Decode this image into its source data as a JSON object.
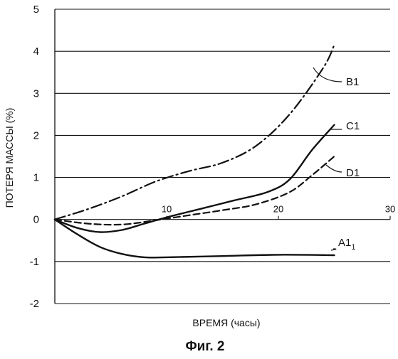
{
  "chart_data": {
    "type": "line",
    "title": "",
    "xlabel": "ВРЕМЯ (часы)",
    "ylabel": "ПОТЕРЯ МАССЫ (%)",
    "xlim": [
      0,
      30
    ],
    "ylim": [
      -2,
      5
    ],
    "x_ticks": [
      "10",
      "20",
      "30"
    ],
    "y_ticks": [
      "-2",
      "-1",
      "0",
      "1",
      "2",
      "3",
      "4",
      "5"
    ],
    "grid": "horizontal",
    "series": [
      {
        "name": "B1",
        "style": "dash-dot",
        "x": [
          0,
          3,
          6,
          9,
          12,
          15,
          18,
          21,
          24,
          25
        ],
        "y": [
          0,
          0.25,
          0.55,
          0.9,
          1.15,
          1.35,
          1.75,
          2.5,
          3.6,
          4.15
        ]
      },
      {
        "name": "C1",
        "style": "solid",
        "x": [
          0,
          2,
          4,
          6,
          8,
          10,
          13,
          16,
          19,
          21,
          23,
          25
        ],
        "y": [
          0,
          -0.2,
          -0.3,
          -0.25,
          -0.1,
          0.05,
          0.25,
          0.45,
          0.65,
          0.95,
          1.65,
          2.25
        ]
      },
      {
        "name": "D1",
        "style": "dashed",
        "x": [
          0,
          3,
          6,
          9,
          12,
          15,
          18,
          21,
          23,
          25
        ],
        "y": [
          0,
          -0.1,
          -0.12,
          -0.02,
          0.1,
          0.22,
          0.36,
          0.65,
          1.05,
          1.5
        ]
      },
      {
        "name": "A1",
        "name_subscript": "1",
        "style": "solid",
        "x": [
          0,
          2,
          4,
          6,
          8,
          10,
          15,
          20,
          25
        ],
        "y": [
          0,
          -0.35,
          -0.65,
          -0.82,
          -0.9,
          -0.9,
          -0.87,
          -0.84,
          -0.85
        ]
      }
    ]
  },
  "caption": "Фиг. 2",
  "colors": {
    "line": "#111111",
    "background": "#ffffff"
  }
}
